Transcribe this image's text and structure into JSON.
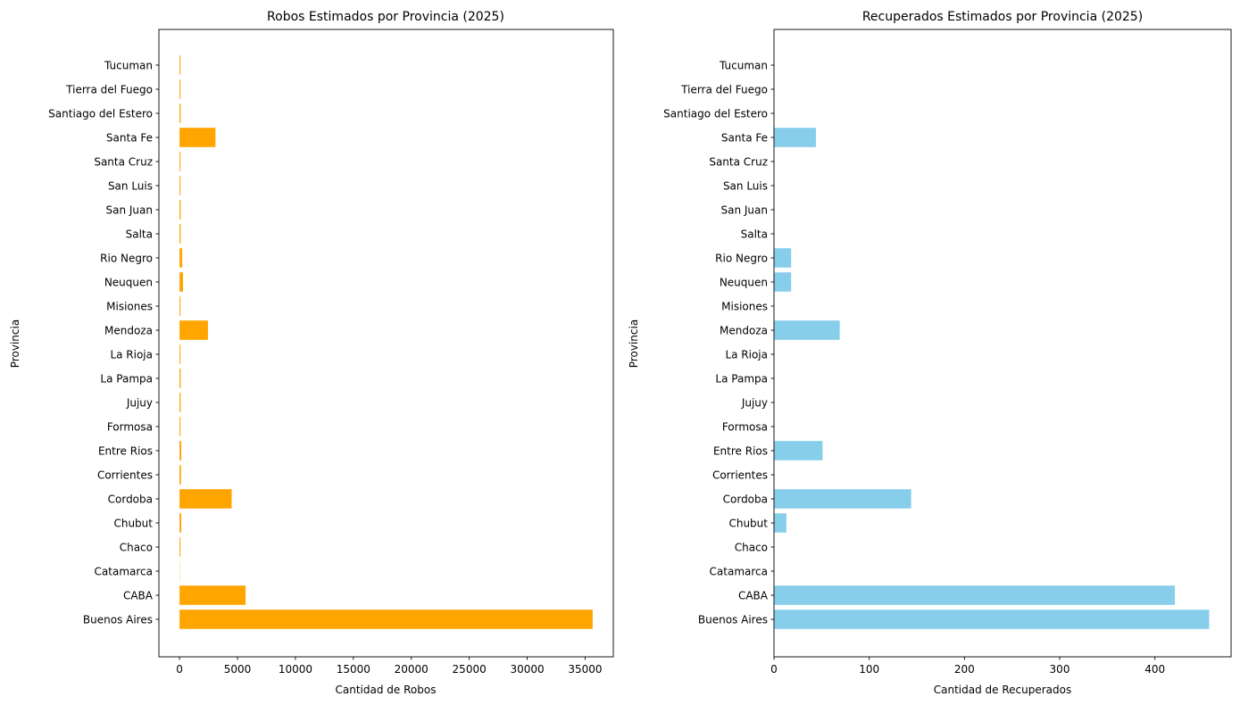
{
  "chart_data": [
    {
      "type": "bar",
      "orientation": "horizontal",
      "title": "Robos Estimados por Provincia (2025)",
      "xlabel": "Cantidad de Robos",
      "ylabel": "Provincia",
      "color": "#FFA500",
      "xlim": [
        -1780,
        37430
      ],
      "xticks": [
        0,
        5000,
        10000,
        15000,
        20000,
        25000,
        30000,
        35000
      ],
      "grid": false,
      "categories": [
        "Buenos Aires",
        "CABA",
        "Catamarca",
        "Chaco",
        "Chubut",
        "Cordoba",
        "Corrientes",
        "Entre Rios",
        "Formosa",
        "Jujuy",
        "La Pampa",
        "La Rioja",
        "Mendoza",
        "Misiones",
        "Neuquen",
        "Rio Negro",
        "Salta",
        "San Juan",
        "San Luis",
        "Santa Cruz",
        "Santa Fe",
        "Santiago del Estero",
        "Tierra del Fuego",
        "Tucuman"
      ],
      "values": [
        35650,
        5700,
        20,
        80,
        150,
        4500,
        130,
        150,
        80,
        100,
        100,
        80,
        2450,
        80,
        300,
        230,
        100,
        100,
        80,
        80,
        3100,
        100,
        80,
        80
      ]
    },
    {
      "type": "bar",
      "orientation": "horizontal",
      "title": "Recuperados Estimados por Provincia (2025)",
      "xlabel": "Cantidad de Recuperados",
      "ylabel": "Provincia",
      "color": "#87CEEB",
      "xlim": [
        0,
        480
      ],
      "xticks": [
        0,
        100,
        200,
        300,
        400
      ],
      "grid": false,
      "categories": [
        "Buenos Aires",
        "CABA",
        "Catamarca",
        "Chaco",
        "Chubut",
        "Cordoba",
        "Corrientes",
        "Entre Rios",
        "Formosa",
        "Jujuy",
        "La Pampa",
        "La Rioja",
        "Mendoza",
        "Misiones",
        "Neuquen",
        "Rio Negro",
        "Salta",
        "San Juan",
        "San Luis",
        "Santa Cruz",
        "Santa Fe",
        "Santiago del Estero",
        "Tierra del Fuego",
        "Tucuman"
      ],
      "values": [
        457,
        421,
        0,
        0,
        13,
        144,
        0,
        51,
        0,
        0,
        0,
        0,
        69,
        0,
        18,
        18,
        0,
        0,
        0,
        0,
        44,
        0,
        0,
        0
      ]
    }
  ]
}
